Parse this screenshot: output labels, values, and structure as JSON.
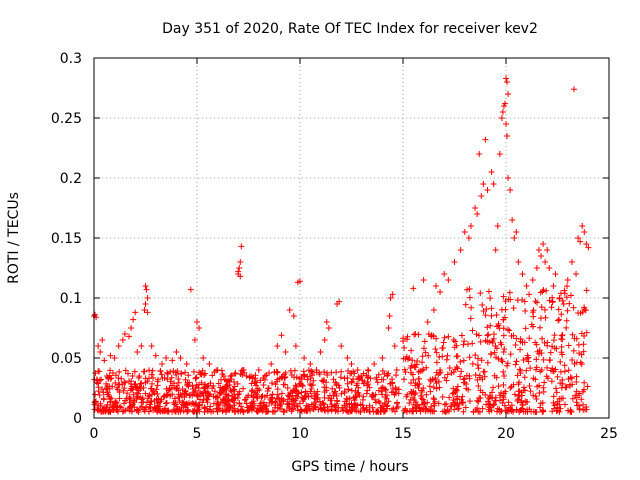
{
  "chart_data": {
    "type": "scatter",
    "title": "Day 351 of 2020, Rate Of TEC Index for receiver kev2",
    "xlabel": "GPS time / hours",
    "ylabel": "ROTI / TECUs",
    "xlim": [
      0,
      25
    ],
    "ylim": [
      0,
      0.3
    ],
    "x_ticks": [
      0,
      5,
      10,
      15,
      20,
      25
    ],
    "x_tick_labels": [
      "0",
      "5",
      "10",
      "15",
      "20",
      "25"
    ],
    "y_ticks": [
      0,
      0.05,
      0.1,
      0.15,
      0.2,
      0.25,
      0.3
    ],
    "y_tick_labels": [
      "0",
      "0.05",
      "0.1",
      "0.15",
      "0.2",
      "0.25",
      "0.3"
    ],
    "grid": true,
    "marker": "plus",
    "series": [
      {
        "name": "ROTI",
        "color": "#ff0000",
        "points": [
          [
            0.0,
            0.085
          ],
          [
            0.05,
            0.086
          ],
          [
            0.1,
            0.084
          ],
          [
            0.2,
            0.06
          ],
          [
            0.3,
            0.055
          ],
          [
            0.4,
            0.065
          ],
          [
            0.5,
            0.048
          ],
          [
            0.8,
            0.052
          ],
          [
            1.0,
            0.05
          ],
          [
            1.2,
            0.06
          ],
          [
            1.4,
            0.065
          ],
          [
            1.5,
            0.07
          ],
          [
            1.7,
            0.068
          ],
          [
            1.8,
            0.075
          ],
          [
            1.9,
            0.082
          ],
          [
            2.0,
            0.088
          ],
          [
            2.1,
            0.055
          ],
          [
            2.3,
            0.06
          ],
          [
            2.5,
            0.11
          ],
          [
            2.55,
            0.107
          ],
          [
            2.6,
            0.1
          ],
          [
            2.5,
            0.095
          ],
          [
            2.45,
            0.09
          ],
          [
            2.6,
            0.088
          ],
          [
            2.8,
            0.06
          ],
          [
            3.0,
            0.052
          ],
          [
            3.3,
            0.045
          ],
          [
            3.5,
            0.05
          ],
          [
            3.8,
            0.048
          ],
          [
            4.0,
            0.055
          ],
          [
            4.2,
            0.05
          ],
          [
            4.5,
            0.045
          ],
          [
            4.7,
            0.107
          ],
          [
            5.0,
            0.08
          ],
          [
            5.1,
            0.075
          ],
          [
            4.9,
            0.065
          ],
          [
            5.3,
            0.05
          ],
          [
            5.6,
            0.045
          ],
          [
            6.0,
            0.04
          ],
          [
            6.3,
            0.035
          ],
          [
            6.8,
            0.03
          ],
          [
            7.0,
            0.12
          ],
          [
            7.05,
            0.125
          ],
          [
            7.1,
            0.13
          ],
          [
            7.15,
            0.143
          ],
          [
            7.0,
            0.122
          ],
          [
            7.1,
            0.118
          ],
          [
            7.4,
            0.035
          ],
          [
            7.8,
            0.03
          ],
          [
            8.0,
            0.04
          ],
          [
            8.3,
            0.035
          ],
          [
            8.6,
            0.045
          ],
          [
            8.9,
            0.06
          ],
          [
            9.1,
            0.069
          ],
          [
            9.3,
            0.055
          ],
          [
            9.5,
            0.09
          ],
          [
            9.7,
            0.085
          ],
          [
            9.9,
            0.113
          ],
          [
            10.0,
            0.114
          ],
          [
            9.8,
            0.06
          ],
          [
            10.2,
            0.05
          ],
          [
            10.5,
            0.045
          ],
          [
            10.8,
            0.04
          ],
          [
            11.0,
            0.055
          ],
          [
            11.2,
            0.065
          ],
          [
            11.3,
            0.08
          ],
          [
            11.4,
            0.075
          ],
          [
            11.8,
            0.095
          ],
          [
            11.9,
            0.097
          ],
          [
            12.0,
            0.06
          ],
          [
            12.3,
            0.05
          ],
          [
            12.5,
            0.045
          ],
          [
            12.8,
            0.04
          ],
          [
            13.0,
            0.035
          ],
          [
            13.3,
            0.04
          ],
          [
            13.6,
            0.045
          ],
          [
            14.0,
            0.05
          ],
          [
            14.3,
            0.075
          ],
          [
            14.4,
            0.1
          ],
          [
            14.5,
            0.103
          ],
          [
            14.35,
            0.085
          ],
          [
            14.6,
            0.06
          ],
          [
            14.7,
            0.04
          ],
          [
            15.3,
            0.05
          ],
          [
            15.5,
            0.108
          ],
          [
            15.6,
            0.07
          ],
          [
            16.0,
            0.115
          ],
          [
            16.2,
            0.08
          ],
          [
            16.5,
            0.09
          ],
          [
            16.6,
            0.11
          ],
          [
            16.8,
            0.105
          ],
          [
            17.0,
            0.12
          ],
          [
            17.2,
            0.115
          ],
          [
            17.5,
            0.13
          ],
          [
            17.8,
            0.14
          ],
          [
            18.0,
            0.155
          ],
          [
            18.2,
            0.15
          ],
          [
            18.3,
            0.16
          ],
          [
            18.5,
            0.175
          ],
          [
            18.6,
            0.17
          ],
          [
            18.7,
            0.22
          ],
          [
            18.8,
            0.185
          ],
          [
            18.9,
            0.195
          ],
          [
            19.0,
            0.232
          ],
          [
            19.1,
            0.19
          ],
          [
            19.3,
            0.205
          ],
          [
            19.4,
            0.195
          ],
          [
            19.5,
            0.14
          ],
          [
            19.6,
            0.16
          ],
          [
            19.7,
            0.22
          ],
          [
            19.8,
            0.25
          ],
          [
            19.85,
            0.255
          ],
          [
            19.9,
            0.26
          ],
          [
            19.95,
            0.262
          ],
          [
            20.0,
            0.283
          ],
          [
            20.05,
            0.28
          ],
          [
            20.1,
            0.27
          ],
          [
            20.0,
            0.245
          ],
          [
            20.05,
            0.235
          ],
          [
            20.1,
            0.2
          ],
          [
            20.2,
            0.19
          ],
          [
            20.3,
            0.165
          ],
          [
            20.4,
            0.15
          ],
          [
            20.5,
            0.155
          ],
          [
            20.6,
            0.13
          ],
          [
            20.8,
            0.12
          ],
          [
            21.0,
            0.11
          ],
          [
            21.3,
            0.115
          ],
          [
            21.5,
            0.125
          ],
          [
            21.6,
            0.14
          ],
          [
            21.7,
            0.135
          ],
          [
            21.8,
            0.145
          ],
          [
            21.9,
            0.13
          ],
          [
            22.0,
            0.14
          ],
          [
            22.1,
            0.125
          ],
          [
            22.3,
            0.11
          ],
          [
            22.4,
            0.12
          ],
          [
            22.6,
            0.1
          ],
          [
            22.8,
            0.095
          ],
          [
            23.0,
            0.115
          ],
          [
            23.2,
            0.13
          ],
          [
            23.3,
            0.274
          ],
          [
            23.4,
            0.12
          ],
          [
            23.5,
            0.15
          ],
          [
            23.6,
            0.147
          ],
          [
            23.7,
            0.16
          ],
          [
            23.8,
            0.155
          ],
          [
            23.9,
            0.145
          ],
          [
            24.0,
            0.142
          ]
        ],
        "dense_bands": [
          {
            "x": [
              0.0,
              14.8
            ],
            "y": [
              0.005,
              0.04
            ]
          },
          {
            "x": [
              15.0,
              18.0
            ],
            "y": [
              0.005,
              0.07
            ]
          },
          {
            "x": [
              18.0,
              24.0
            ],
            "y": [
              0.005,
              0.11
            ]
          }
        ]
      }
    ]
  }
}
